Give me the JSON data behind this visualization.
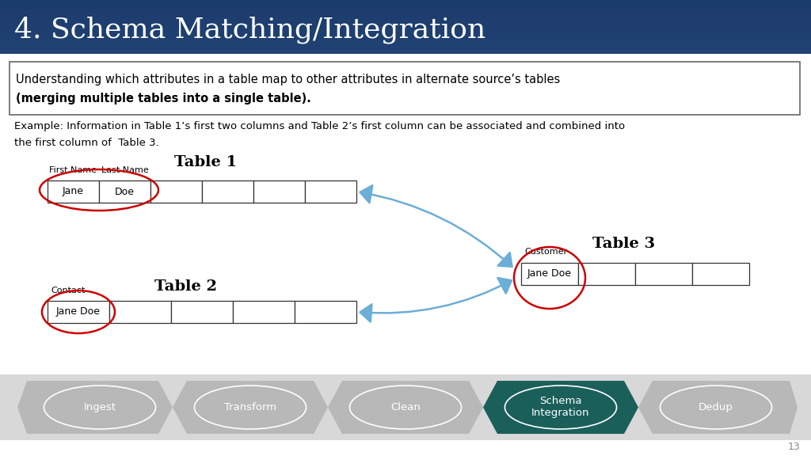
{
  "title": "4. Schema Matching/Integration",
  "title_bg_top": "#1b3d6e",
  "title_bg_bot": "#1e4d82",
  "title_color": "#ffffff",
  "body_bg": "#ffffff",
  "subtitle_line1": "Understanding which attributes in a table map to other attributes in alternate source’s tables",
  "subtitle_line2": "(merging multiple tables into a single table).",
  "example_line1": "Example: Information in Table 1’s first two columns and Table 2’s first column can be associated and combined into",
  "example_line2": "the first column of  Table 3.",
  "table1_title": "Table 1",
  "table2_title": "Table 2",
  "table3_title": "Table 3",
  "pipeline_labels": [
    "Ingest",
    "Transform",
    "Clean",
    "Schema\nIntegration",
    "Dedup"
  ],
  "pipeline_active": 3,
  "pipeline_gray": "#b8b8b8",
  "pipeline_active_color": "#1a5f5a",
  "page_number": "13",
  "arrow_color": "#6baed6",
  "red_circle_color": "#cc0000"
}
